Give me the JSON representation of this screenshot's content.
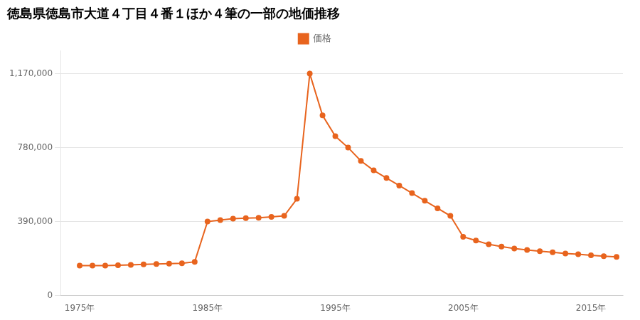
{
  "chart_data": {
    "type": "line",
    "title": "徳島県徳島市大道４丁目４番１ほか４筆の一部の地価推移",
    "x": [
      1975,
      1976,
      1977,
      1978,
      1979,
      1980,
      1981,
      1982,
      1983,
      1984,
      1985,
      1986,
      1987,
      1988,
      1989,
      1990,
      1991,
      1992,
      1993,
      1994,
      1995,
      1996,
      1997,
      1998,
      1999,
      2000,
      2001,
      2002,
      2003,
      2004,
      2005,
      2006,
      2007,
      2008,
      2009,
      2010,
      2011,
      2012,
      2013,
      2014,
      2015,
      2016,
      2017
    ],
    "series": [
      {
        "name": "価格",
        "color": "#e8641e",
        "marker": "circle",
        "values": [
          158000,
          158000,
          158000,
          160000,
          162000,
          164000,
          166000,
          168000,
          170000,
          178000,
          390000,
          398000,
          405000,
          408000,
          410000,
          415000,
          420000,
          510000,
          1170000,
          950000,
          840000,
          780000,
          710000,
          660000,
          620000,
          580000,
          540000,
          500000,
          460000,
          420000,
          310000,
          290000,
          270000,
          258000,
          248000,
          240000,
          234000,
          228000,
          222000,
          218000,
          212000,
          208000,
          204000
        ]
      }
    ],
    "xlim": [
      1973.5,
      2017.5
    ],
    "xticks": [
      {
        "value": 1975,
        "label": "1975年"
      },
      {
        "value": 1985,
        "label": "1985年"
      },
      {
        "value": 1995,
        "label": "1995年"
      },
      {
        "value": 2005,
        "label": "2005年"
      },
      {
        "value": 2015,
        "label": "2015年"
      }
    ],
    "ylim": [
      0,
      1290000
    ],
    "yticks": [
      0,
      {
        "value": 390000,
        "label": "390,000"
      },
      {
        "value": 780000,
        "label": "780,000"
      },
      {
        "value": 1170000,
        "label": "1,170,000"
      }
    ],
    "grid": "y",
    "legend": "top"
  }
}
